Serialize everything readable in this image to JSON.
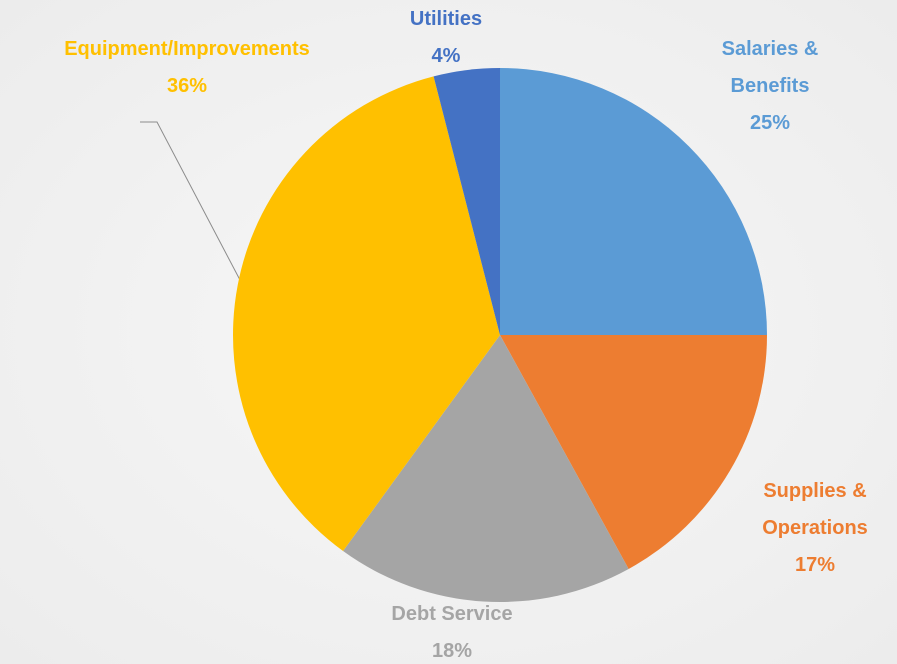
{
  "chart_data": {
    "type": "pie",
    "categories": [
      "Salaries & Benefits",
      "Supplies & Operations",
      "Debt Service",
      "Equipment/Improvements",
      "Utilities"
    ],
    "values": [
      25,
      17,
      18,
      36,
      4
    ],
    "value_labels": [
      "25%",
      "17%",
      "18%",
      "36%",
      "4%"
    ],
    "colors": [
      "#5b9bd5",
      "#ed7d31",
      "#a5a5a5",
      "#ffc000",
      "#4472c4"
    ]
  }
}
